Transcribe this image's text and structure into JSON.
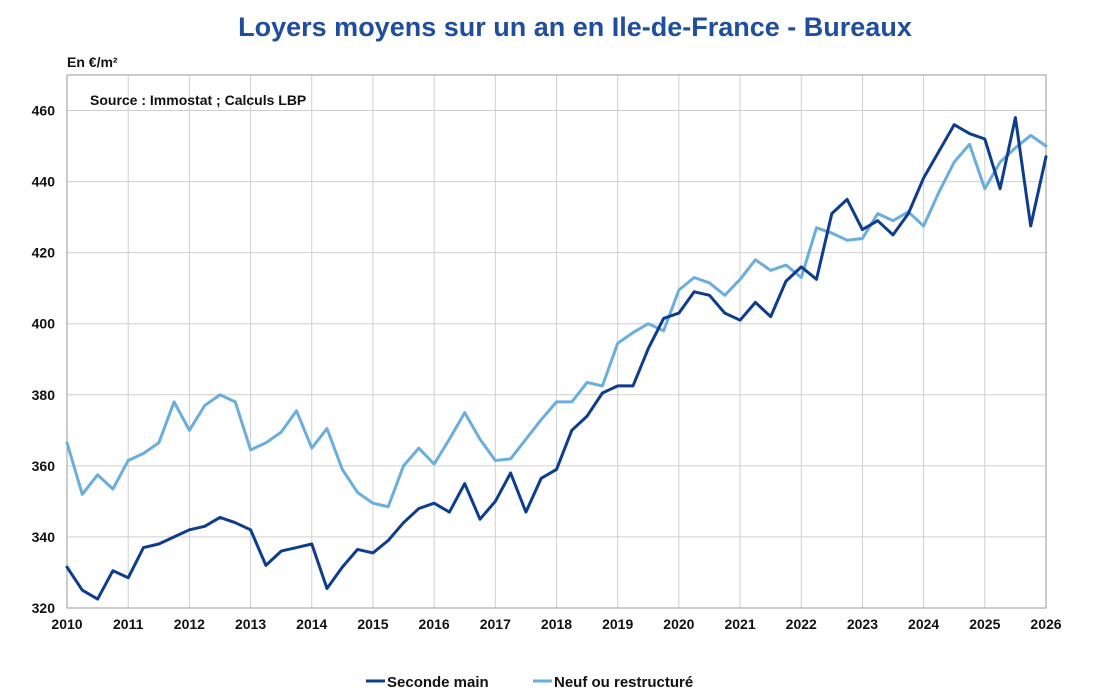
{
  "chart_data": {
    "type": "line",
    "title": "Loyers moyens sur un an en Ile-de-France - Bureaux",
    "ylabel": "En €/m²",
    "annotation": "Source : Immostat ; Calculs LBP",
    "xlim": [
      2010,
      2026
    ],
    "ylim": [
      320,
      470
    ],
    "x_ticks": [
      2010,
      2011,
      2012,
      2013,
      2014,
      2015,
      2016,
      2017,
      2018,
      2019,
      2020,
      2021,
      2022,
      2023,
      2024,
      2025,
      2026
    ],
    "x_tick_labels": [
      "2010",
      "2011",
      "2012",
      "2013",
      "2014",
      "2015",
      "2016",
      "2017",
      "2018",
      "2019",
      "2020",
      "2021",
      "2022",
      "2023",
      "2024",
      "2025",
      "2026"
    ],
    "y_ticks": [
      320,
      340,
      360,
      380,
      400,
      420,
      440,
      460
    ],
    "y_tick_labels": [
      "320",
      "340",
      "360",
      "380",
      "400",
      "420",
      "440",
      "460"
    ],
    "grid": true,
    "legend_position": "bottom",
    "series": [
      {
        "name": "Seconde main",
        "color": "#0d3d8c",
        "x": [
          2010,
          2010.25,
          2010.5,
          2010.75,
          2011,
          2011.25,
          2011.5,
          2011.75,
          2012,
          2012.25,
          2012.5,
          2012.75,
          2013,
          2013.25,
          2013.5,
          2013.75,
          2014,
          2014.25,
          2014.5,
          2014.75,
          2015,
          2015.25,
          2015.5,
          2015.75,
          2016,
          2016.25,
          2016.5,
          2016.75,
          2017,
          2017.25,
          2017.5,
          2017.75,
          2018,
          2018.25,
          2018.5,
          2018.75,
          2019,
          2019.25,
          2019.5,
          2019.75,
          2020,
          2020.25,
          2020.5,
          2020.75,
          2021,
          2021.25,
          2021.5,
          2021.75,
          2022,
          2022.25,
          2022.5,
          2022.75,
          2023,
          2023.25,
          2023.5,
          2023.75,
          2024,
          2024.25,
          2024.5,
          2024.75,
          2025,
          2025.25,
          2025.5,
          2025.75,
          2026
        ],
        "values": [
          331.5,
          325,
          322.5,
          330.5,
          328.5,
          337,
          338,
          340,
          342,
          343,
          345.5,
          344,
          342,
          332,
          336,
          337,
          338,
          325.5,
          331.5,
          336.5,
          335.5,
          339,
          344,
          348,
          349.5,
          347,
          355,
          345,
          350,
          358,
          347,
          356.5,
          359,
          370,
          374,
          380.5,
          382.5,
          382.5,
          393,
          401.5,
          403,
          409,
          408,
          403,
          401,
          406,
          402,
          412,
          416,
          412.5,
          431,
          435,
          426.5,
          429,
          425,
          431,
          441,
          448.5,
          456,
          453.5,
          452,
          438,
          458,
          427.5,
          447
        ]
      },
      {
        "name": "Neuf ou restructuré",
        "color": "#6aaede",
        "x": [
          2010,
          2010.25,
          2010.5,
          2010.75,
          2011,
          2011.25,
          2011.5,
          2011.75,
          2012,
          2012.25,
          2012.5,
          2012.75,
          2013,
          2013.25,
          2013.5,
          2013.75,
          2014,
          2014.25,
          2014.5,
          2014.75,
          2015,
          2015.25,
          2015.5,
          2015.75,
          2016,
          2016.25,
          2016.5,
          2016.75,
          2017,
          2017.25,
          2017.5,
          2017.75,
          2018,
          2018.25,
          2018.5,
          2018.75,
          2019,
          2019.25,
          2019.5,
          2019.75,
          2020,
          2020.25,
          2020.5,
          2020.75,
          2021,
          2021.25,
          2021.5,
          2021.75,
          2022,
          2022.25,
          2022.5,
          2022.75,
          2023,
          2023.25,
          2023.5,
          2023.75,
          2024,
          2024.25,
          2024.5,
          2024.75,
          2025,
          2025.25,
          2025.5,
          2025.75,
          2026
        ],
        "values": [
          366.5,
          352,
          357.5,
          353.5,
          361.5,
          363.5,
          366.5,
          378,
          370,
          377,
          380,
          378,
          364.5,
          366.5,
          369.5,
          375.5,
          365,
          370.5,
          359,
          352.5,
          349.5,
          348.5,
          360,
          365,
          360.5,
          367.5,
          375,
          367.5,
          361.5,
          362,
          367.5,
          373,
          378,
          378,
          383.5,
          382.5,
          394.5,
          397.5,
          400,
          398,
          409.5,
          413,
          411.5,
          408,
          412.5,
          418,
          415,
          416.5,
          413,
          427,
          425.5,
          423.5,
          424,
          431,
          429,
          431.5,
          427.5,
          437,
          445.5,
          450.5,
          438,
          445.5,
          449.5,
          453,
          450
        ]
      }
    ]
  }
}
